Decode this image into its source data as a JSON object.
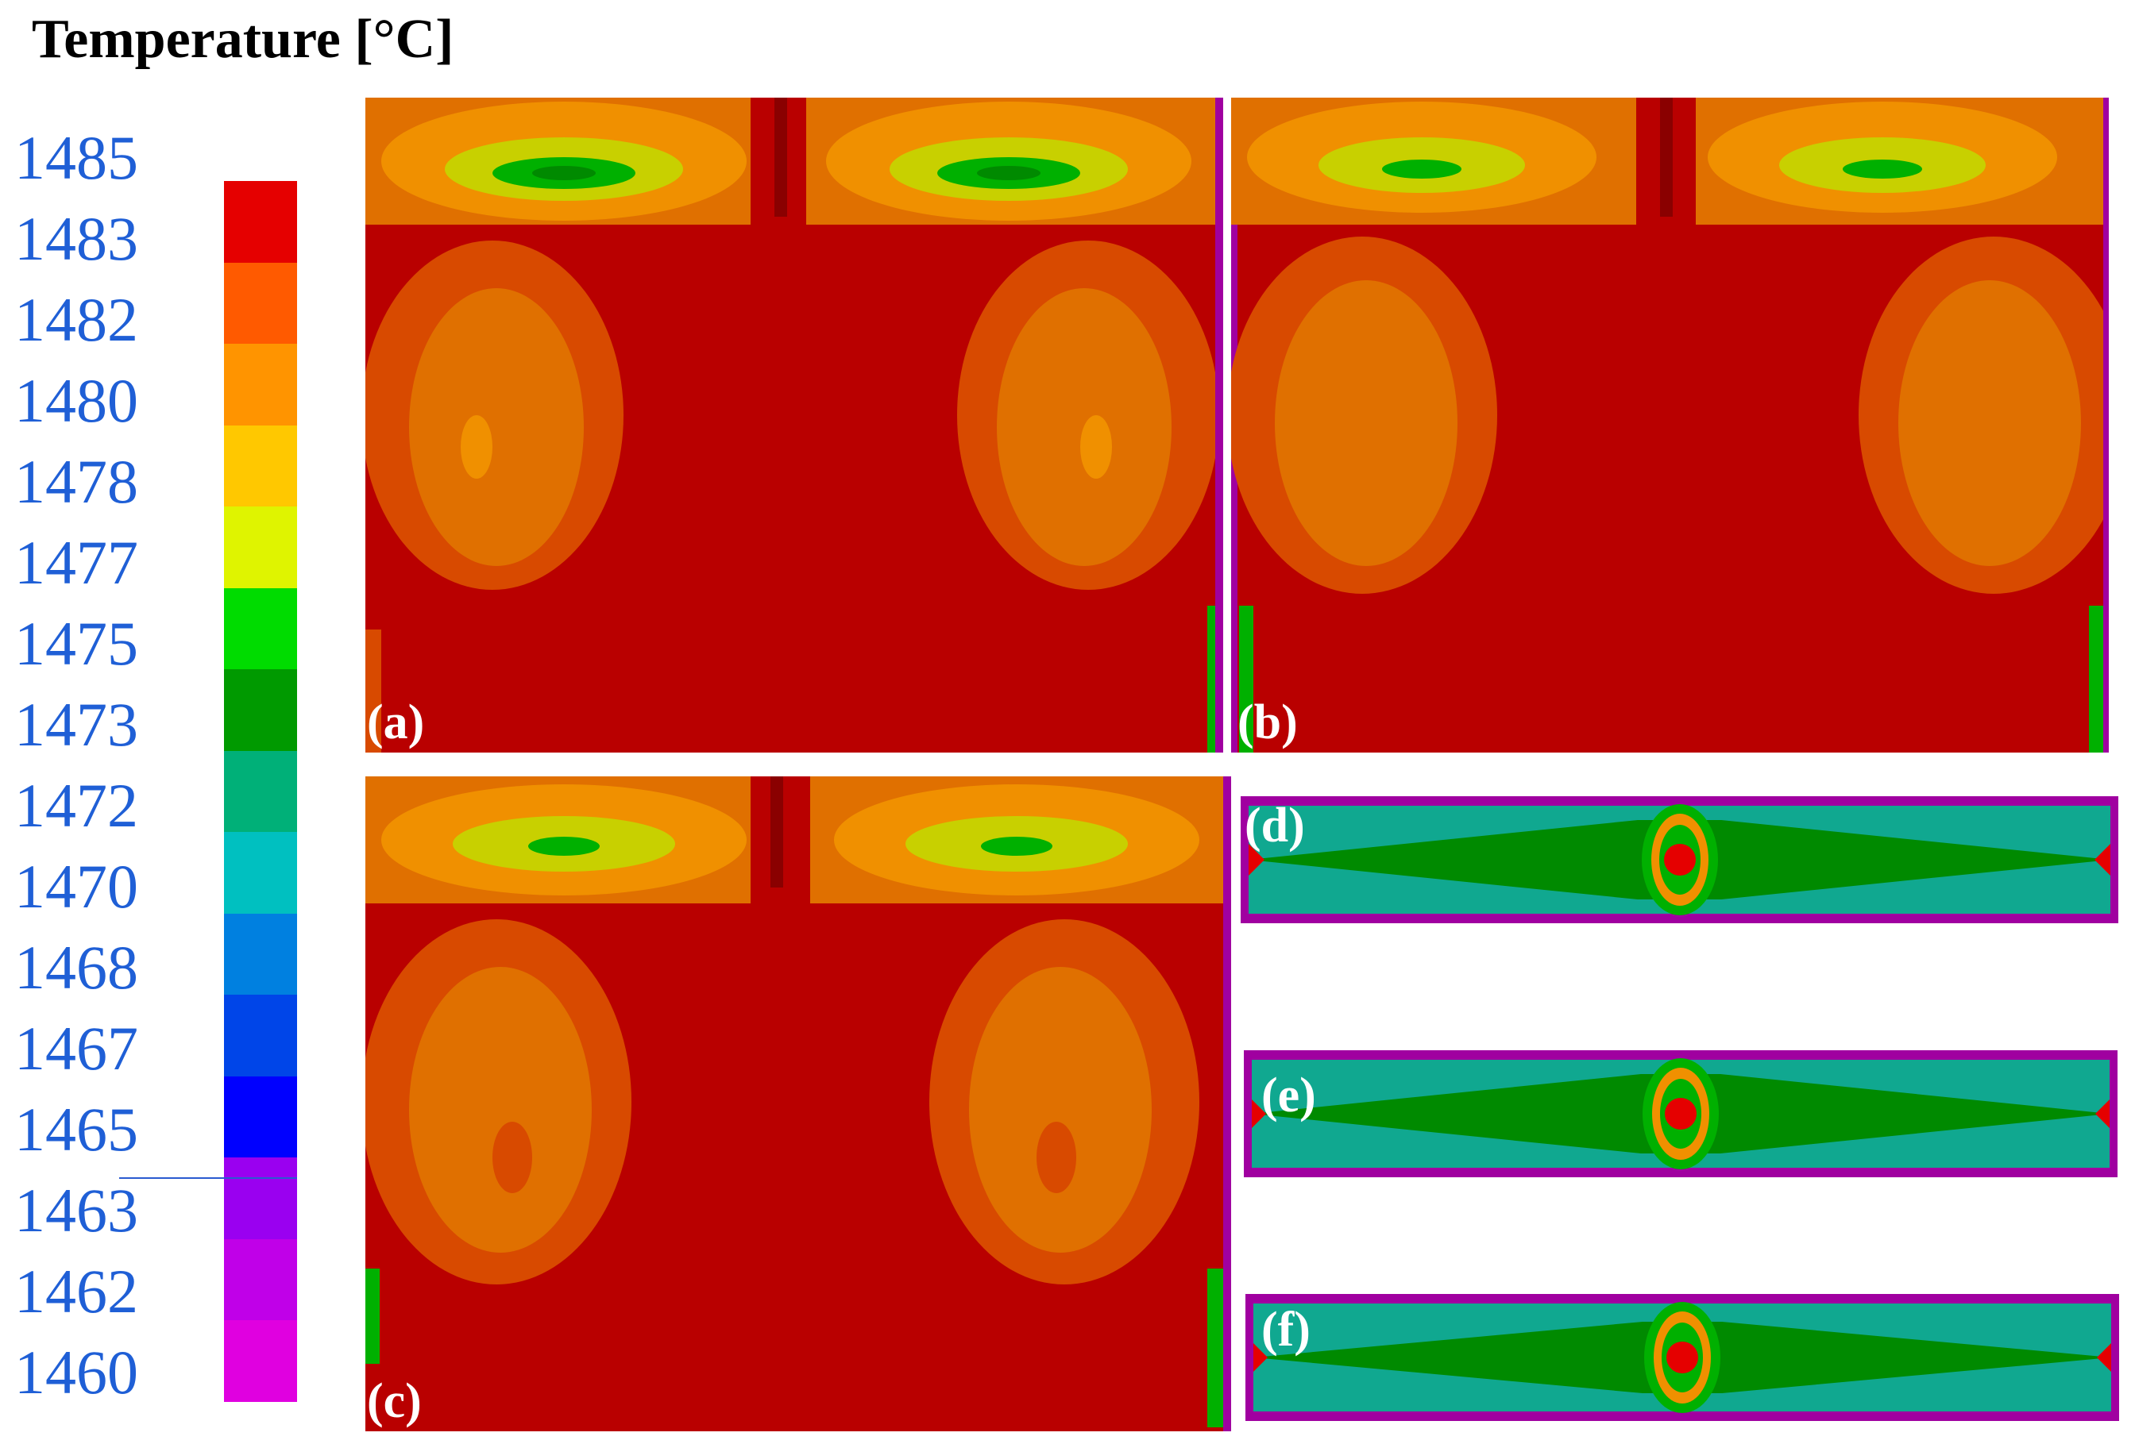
{
  "title": "Temperature [°C]",
  "legend": {
    "labels": [
      "1485",
      "1483",
      "1482",
      "1480",
      "1478",
      "1477",
      "1475",
      "1473",
      "1472",
      "1470",
      "1468",
      "1467",
      "1465",
      "1463",
      "1462",
      "1460"
    ],
    "colors": [
      "#e50000",
      "#ff5a00",
      "#ff9400",
      "#ffc800",
      "#dff400",
      "#00dc00",
      "#009a00",
      "#00b078",
      "#00c0c0",
      "#0080e0",
      "#0045e8",
      "#0000ff",
      "#9a00f0",
      "#c000e8",
      "#e000e0",
      "#d000b0"
    ]
  },
  "palette": {
    "hot": "#b90000",
    "orange_dark": "#d84a00",
    "orange": "#e07000",
    "orange_light": "#f09000",
    "yellow_green": "#c8d000",
    "green": "#00b000",
    "green_dark": "#008a00",
    "teal": "#10a890",
    "purple": "#a000a0"
  },
  "panels": {
    "a": "(a)",
    "b": "(b)",
    "c": "(c)",
    "d": "(d)",
    "e": "(e)",
    "f": "(f)"
  }
}
